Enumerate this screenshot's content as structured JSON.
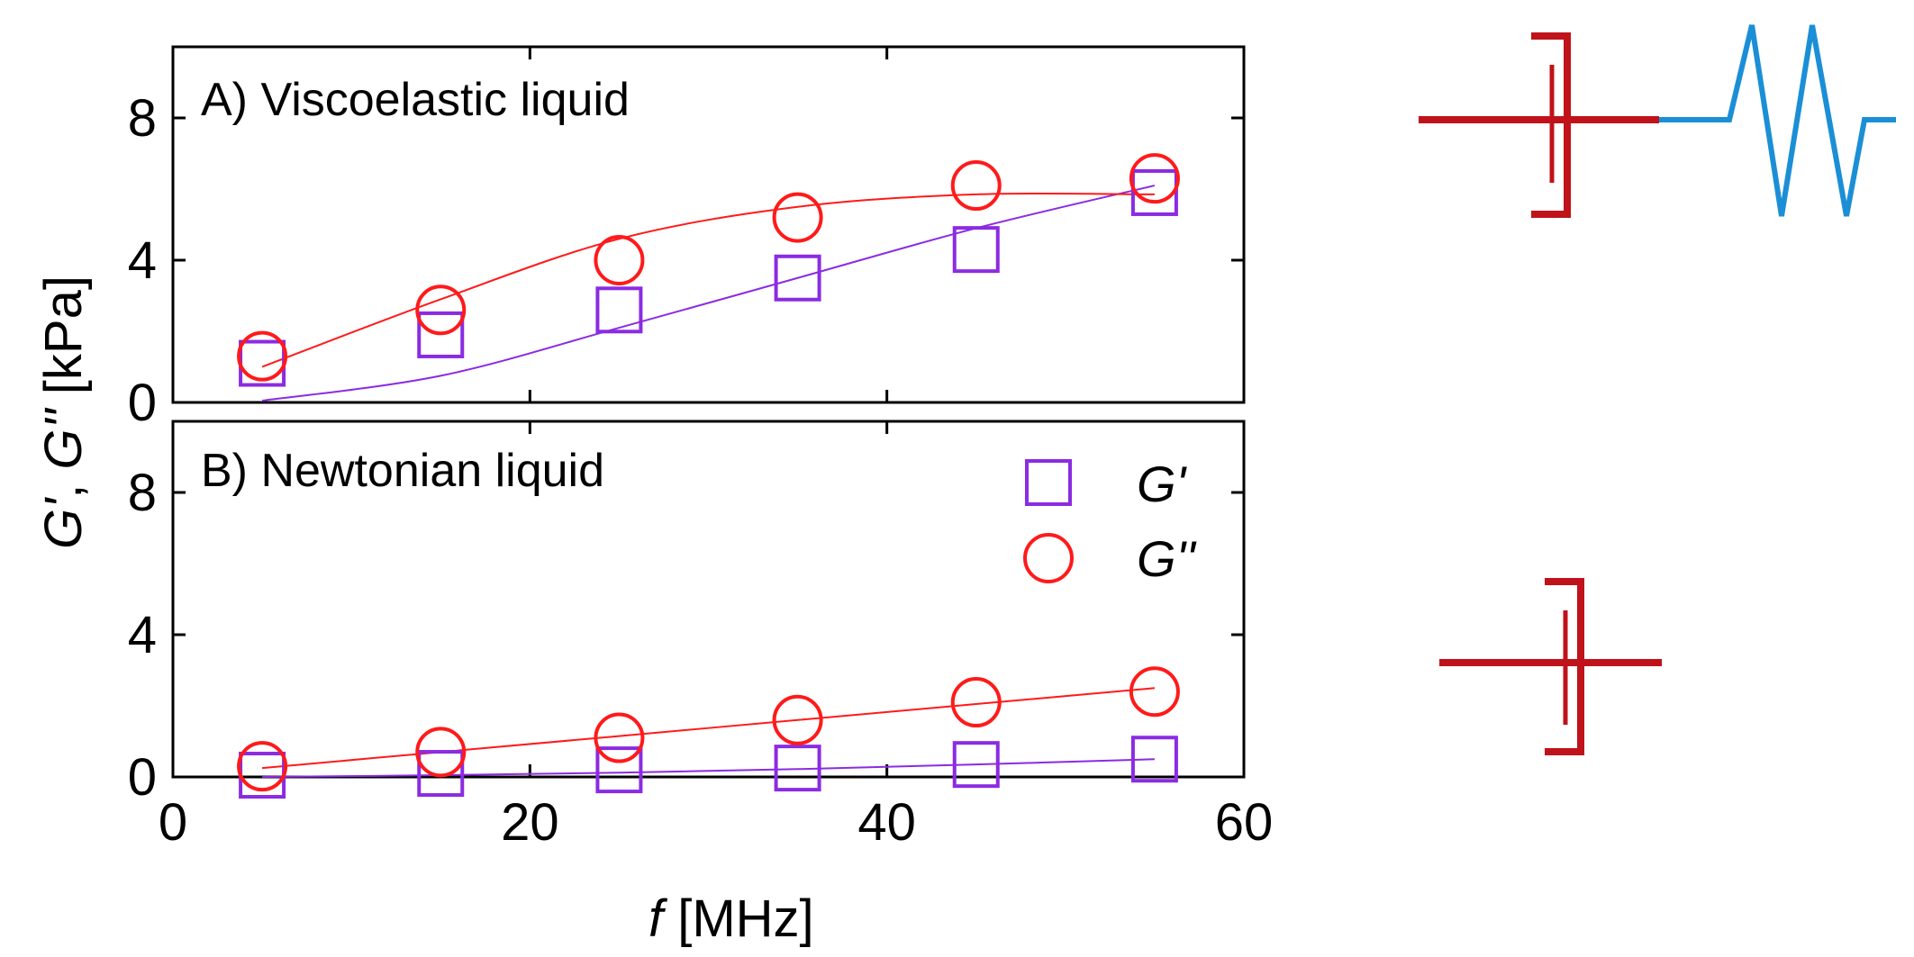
{
  "chart_data": [
    {
      "type": "scatter",
      "panel_label": "A) Viscoelastic liquid",
      "x": [
        5,
        15,
        25,
        35,
        45,
        55
      ],
      "series": [
        {
          "name": "G'",
          "marker": "square",
          "color": "#8b2be2",
          "values": [
            1.1,
            1.9,
            2.6,
            3.5,
            4.3,
            5.9
          ]
        },
        {
          "name": "G''",
          "marker": "circle",
          "color": "#ff1a1a",
          "values": [
            1.3,
            2.6,
            4.0,
            5.2,
            6.1,
            6.3
          ]
        }
      ],
      "xlim": [
        0,
        60
      ],
      "ylim": [
        0,
        10
      ],
      "xticks": [
        0,
        20,
        40,
        60
      ],
      "yticks": [
        0,
        4,
        8
      ],
      "ytick_labels": [
        "0",
        "4",
        "8"
      ]
    },
    {
      "type": "scatter",
      "panel_label": "B) Newtonian liquid",
      "x": [
        5,
        15,
        25,
        35,
        45,
        55
      ],
      "series": [
        {
          "name": "G'",
          "marker": "square",
          "color": "#8b2be2",
          "values": [
            0.05,
            0.1,
            0.2,
            0.25,
            0.35,
            0.5
          ]
        },
        {
          "name": "G''",
          "marker": "circle",
          "color": "#ff1a1a",
          "values": [
            0.3,
            0.7,
            1.1,
            1.6,
            2.1,
            2.4
          ]
        }
      ],
      "xlim": [
        0,
        60
      ],
      "ylim": [
        0,
        10
      ],
      "xticks": [
        0,
        20,
        40,
        60
      ],
      "xtick_labels": [
        "0",
        "20",
        "40",
        "60"
      ],
      "yticks": [
        0,
        4,
        8
      ],
      "ytick_labels": [
        "0",
        "4",
        "8"
      ]
    }
  ],
  "labels": {
    "xlabel_italic": "f",
    "xlabel_rest": " [MHz]",
    "ylabel_g1": "G'",
    "ylabel_sep": ", ",
    "ylabel_g2": "G''",
    "ylabel_rest": " [kPa]"
  },
  "legend": {
    "items": [
      {
        "label": "G'",
        "marker": "square",
        "color": "#8b2be2"
      },
      {
        "label": "G''",
        "marker": "circle",
        "color": "#ff1a1a"
      }
    ]
  },
  "diagram_colors": {
    "dashpot": "#c0121a",
    "spring": "#1b8fd6"
  }
}
